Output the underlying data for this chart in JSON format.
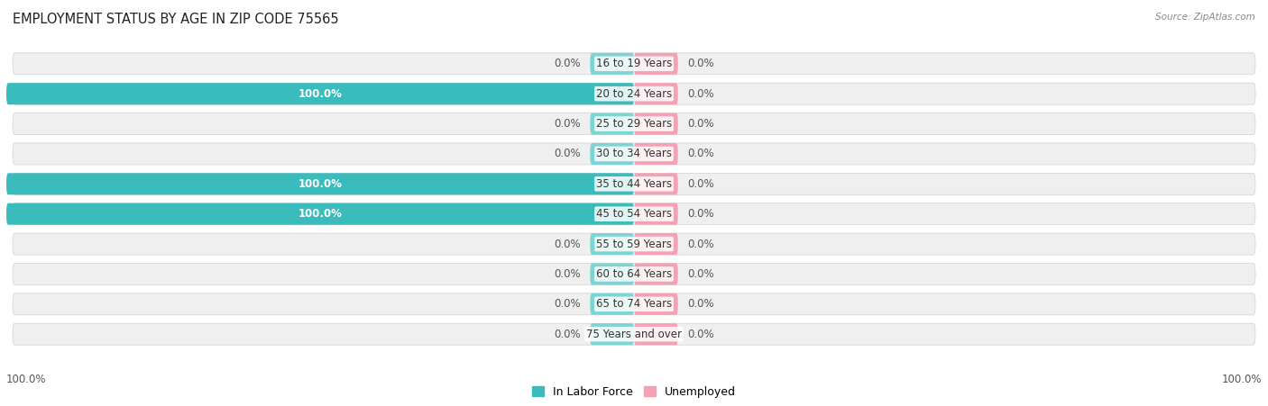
{
  "title": "EMPLOYMENT STATUS BY AGE IN ZIP CODE 75565",
  "source": "Source: ZipAtlas.com",
  "categories": [
    "16 to 19 Years",
    "20 to 24 Years",
    "25 to 29 Years",
    "30 to 34 Years",
    "35 to 44 Years",
    "45 to 54 Years",
    "55 to 59 Years",
    "60 to 64 Years",
    "65 to 74 Years",
    "75 Years and over"
  ],
  "in_labor_force": [
    0.0,
    100.0,
    0.0,
    0.0,
    100.0,
    100.0,
    0.0,
    0.0,
    0.0,
    0.0
  ],
  "unemployed": [
    0.0,
    0.0,
    0.0,
    0.0,
    0.0,
    0.0,
    0.0,
    0.0,
    0.0,
    0.0
  ],
  "labor_force_color": "#3BBCBC",
  "labor_force_stub_color": "#7DD4D4",
  "unemployed_color": "#F4A0B5",
  "title_fontsize": 10.5,
  "label_fontsize": 8.5,
  "row_bg_color": "#EFEFEF",
  "row_stripe_color": "#E0E0E0",
  "background_color": "#FFFFFF"
}
